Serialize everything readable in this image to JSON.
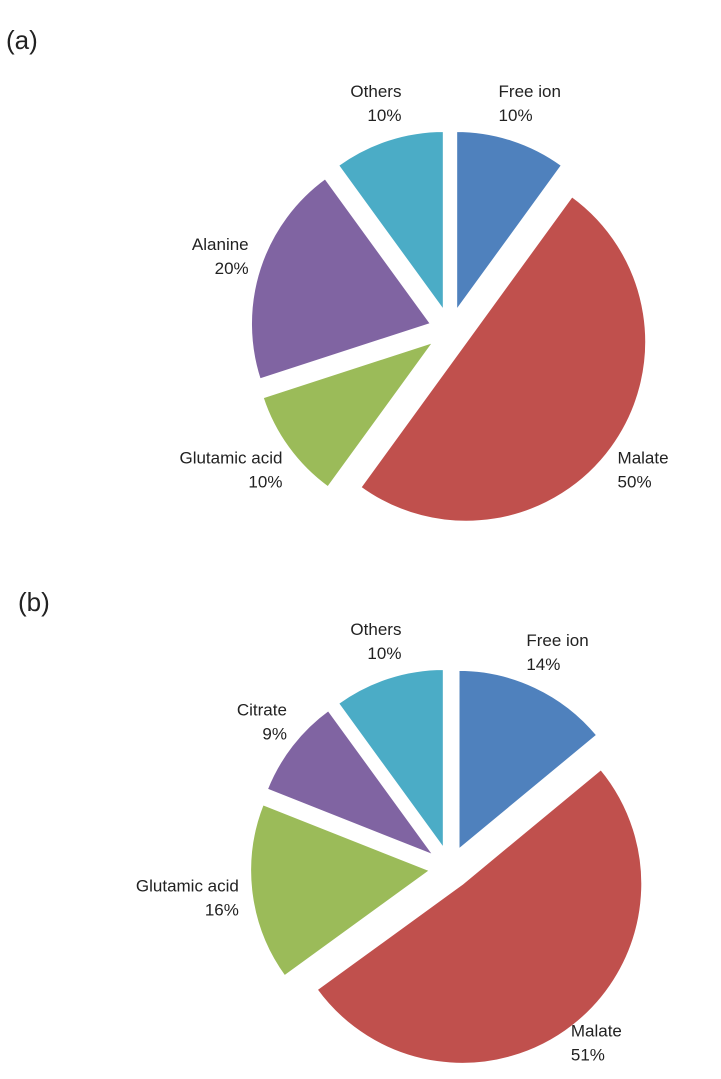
{
  "chart_data": [
    {
      "type": "pie",
      "title": "(a)",
      "categories": [
        "Free ion",
        "Malate",
        "Glutamic acid",
        "Alanine",
        "Others"
      ],
      "values": [
        10,
        50,
        10,
        20,
        10
      ],
      "value_labels": [
        "10%",
        "50%",
        "10%",
        "20%",
        "10%"
      ],
      "colors": [
        "#4f81bd",
        "#c0504d",
        "#9bbb59",
        "#8064a2",
        "#4bacc6"
      ]
    },
    {
      "type": "pie",
      "title": "(b)",
      "categories": [
        "Free ion",
        "Malate",
        "Glutamic acid",
        "Citrate",
        "Others"
      ],
      "values": [
        14,
        51,
        16,
        9,
        10
      ],
      "value_labels": [
        "14%",
        "51%",
        "16%",
        "9%",
        "10%"
      ],
      "colors": [
        "#4f81bd",
        "#c0504d",
        "#9bbb59",
        "#8064a2",
        "#4bacc6"
      ]
    }
  ]
}
